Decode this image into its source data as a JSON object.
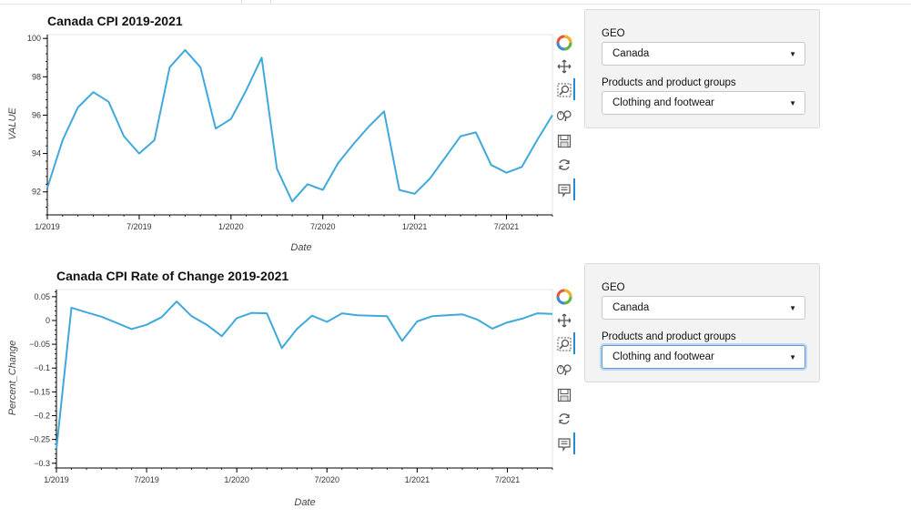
{
  "plots": [
    {
      "id": "cpi",
      "chart_data": {
        "type": "line",
        "title": "Canada CPI 2019-2021",
        "xlabel": "Date",
        "ylabel": "VALUE",
        "x_tick_labels": [
          "1/2019",
          "7/2019",
          "1/2020",
          "7/2020",
          "1/2021",
          "7/2021"
        ],
        "y_tick_labels": [
          "100",
          "98",
          "96",
          "94",
          "92"
        ],
        "y_ticks": [
          100,
          98,
          96,
          94,
          92
        ],
        "x_range": [
          "2019-01",
          "2021-10"
        ],
        "ylim": [
          90.8,
          100.2
        ],
        "x": [
          "2019-01",
          "2019-02",
          "2019-03",
          "2019-04",
          "2019-05",
          "2019-06",
          "2019-07",
          "2019-08",
          "2019-09",
          "2019-10",
          "2019-11",
          "2019-12",
          "2020-01",
          "2020-02",
          "2020-03",
          "2020-04",
          "2020-05",
          "2020-06",
          "2020-07",
          "2020-08",
          "2020-09",
          "2020-10",
          "2020-11",
          "2020-12",
          "2021-01",
          "2021-02",
          "2021-03",
          "2021-04",
          "2021-05",
          "2021-06",
          "2021-07",
          "2021-08",
          "2021-09",
          "2021-10"
        ],
        "series": [
          {
            "values": [
              92.2,
              94.7,
              96.4,
              97.2,
              96.7,
              94.9,
              94.0,
              94.7,
              98.5,
              99.4,
              98.5,
              95.3,
              95.8,
              97.3,
              99.0,
              93.2,
              91.5,
              92.4,
              92.1,
              93.5,
              94.5,
              95.4,
              96.2,
              92.1,
              91.9,
              92.7,
              93.8,
              94.9,
              95.1,
              93.4,
              93.0,
              93.3,
              94.7,
              96.0
            ]
          }
        ],
        "line_color": "#3fa9dc",
        "grid": false
      }
    },
    {
      "id": "roc",
      "chart_data": {
        "type": "line",
        "title": "Canada CPI Rate of Change 2019-2021",
        "xlabel": "Date",
        "ylabel": "Percent_Change",
        "x_tick_labels": [
          "1/2019",
          "7/2019",
          "1/2020",
          "7/2020",
          "1/2021",
          "7/2021"
        ],
        "y_tick_labels": [
          "0.05",
          "0",
          "−0.05",
          "−0.1",
          "−0.15",
          "−0.2",
          "−0.25",
          "−0.3"
        ],
        "y_ticks": [
          0.05,
          0,
          -0.05,
          -0.1,
          -0.15,
          -0.2,
          -0.25,
          -0.3
        ],
        "x_range": [
          "2019-01",
          "2021-10"
        ],
        "ylim": [
          -0.31,
          0.065
        ],
        "x": [
          "2019-01",
          "2019-02",
          "2019-03",
          "2019-04",
          "2019-05",
          "2019-06",
          "2019-07",
          "2019-08",
          "2019-09",
          "2019-10",
          "2019-11",
          "2019-12",
          "2020-01",
          "2020-02",
          "2020-03",
          "2020-04",
          "2020-05",
          "2020-06",
          "2020-07",
          "2020-08",
          "2020-09",
          "2020-10",
          "2020-11",
          "2020-12",
          "2021-01",
          "2021-02",
          "2021-03",
          "2021-04",
          "2021-05",
          "2021-06",
          "2021-07",
          "2021-08",
          "2021-09",
          "2021-10"
        ],
        "series": [
          {
            "values": [
              -0.27,
              0.027,
              0.017,
              0.008,
              -0.005,
              -0.018,
              -0.009,
              0.007,
              0.04,
              0.009,
              -0.009,
              -0.033,
              0.005,
              0.016,
              0.015,
              -0.058,
              -0.018,
              0.01,
              -0.003,
              0.015,
              0.011,
              0.01,
              0.009,
              -0.043,
              -0.002,
              0.009,
              0.011,
              0.013,
              0.002,
              -0.017,
              -0.004,
              0.004,
              0.015,
              0.014
            ]
          }
        ],
        "line_color": "#3fa9dc",
        "grid": false
      }
    }
  ],
  "toolbar": {
    "tools": [
      "bokeh-logo-icon",
      "pan-icon",
      "box-zoom-icon",
      "wheel-zoom-icon",
      "save-icon",
      "reset-icon",
      "hover-icon"
    ]
  },
  "widgets": [
    {
      "geo_label": "GEO",
      "geo_value": "Canada",
      "products_label": "Products and product groups",
      "products_value": "Clothing and footwear"
    },
    {
      "geo_label": "GEO",
      "geo_value": "Canada",
      "products_label": "Products and product groups",
      "products_value": "Clothing and footwear"
    }
  ]
}
